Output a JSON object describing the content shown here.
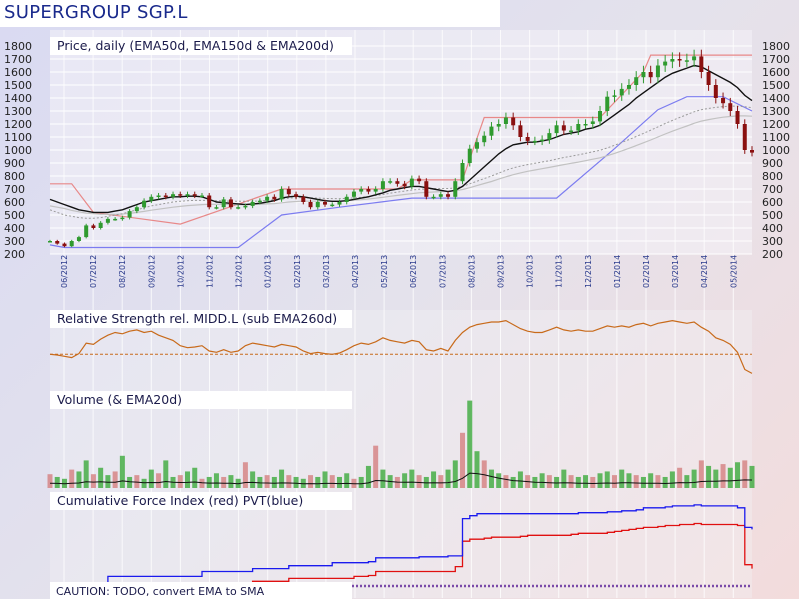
{
  "title": "SUPERGROUP SGP.L",
  "chart_data": {
    "type": "line",
    "panels": [
      {
        "name": "price",
        "title": "Price, daily (EMA50d, EMA150d & EMA200d)",
        "ylim": [
          200,
          1800
        ],
        "yticks": [
          200,
          300,
          400,
          500,
          600,
          700,
          800,
          900,
          1000,
          1100,
          1200,
          1300,
          1400,
          1500,
          1600,
          1700,
          1800
        ]
      },
      {
        "name": "relative-strength",
        "title": "Relative Strength rel. MIDD.L (sub EMA260d)"
      },
      {
        "name": "volume",
        "title": "Volume (& EMA20d)"
      },
      {
        "name": "cumulative-force",
        "title": "Cumulative Force Index (red) PVT(blue)"
      }
    ],
    "x_labels": [
      "06/2012",
      "07/2012",
      "08/2012",
      "09/2012",
      "10/2012",
      "11/2012",
      "12/2012",
      "01/2013",
      "02/2013",
      "03/2013",
      "04/2013",
      "05/2013",
      "06/2013",
      "07/2013",
      "08/2013",
      "09/2013",
      "10/2013",
      "11/2013",
      "12/2013",
      "01/2014",
      "02/2014",
      "03/2014",
      "04/2014",
      "05/2014"
    ],
    "price_close": [
      300,
      280,
      260,
      300,
      330,
      420,
      400,
      440,
      470,
      470,
      480,
      530,
      560,
      610,
      640,
      650,
      640,
      660,
      650,
      660,
      650,
      650,
      560,
      560,
      620,
      560,
      560,
      570,
      600,
      610,
      640,
      620,
      700,
      660,
      640,
      600,
      560,
      600,
      580,
      580,
      600,
      640,
      680,
      700,
      680,
      700,
      760,
      760,
      740,
      720,
      780,
      760,
      640,
      640,
      660,
      640,
      760,
      900,
      1010,
      1060,
      1110,
      1180,
      1200,
      1250,
      1190,
      1100,
      1070,
      1070,
      1080,
      1130,
      1190,
      1150,
      1150,
      1200,
      1200,
      1220,
      1300,
      1410,
      1420,
      1470,
      1500,
      1560,
      1600,
      1560,
      1650,
      1680,
      1700,
      1690,
      1690,
      1720,
      1600,
      1500,
      1400,
      1360,
      1300,
      1200,
      1000,
      980
    ],
    "ema50": [
      620,
      600,
      580,
      560,
      540,
      530,
      520,
      520,
      520,
      530,
      540,
      560,
      580,
      600,
      610,
      620,
      630,
      640,
      640,
      645,
      645,
      640,
      620,
      600,
      595,
      590,
      585,
      580,
      585,
      590,
      600,
      610,
      630,
      640,
      645,
      640,
      630,
      620,
      610,
      605,
      605,
      610,
      620,
      630,
      640,
      655,
      670,
      690,
      700,
      710,
      720,
      720,
      710,
      700,
      690,
      680,
      690,
      720,
      770,
      820,
      870,
      920,
      970,
      1010,
      1040,
      1050,
      1060,
      1060,
      1070,
      1080,
      1100,
      1120,
      1130,
      1140,
      1160,
      1170,
      1190,
      1230,
      1270,
      1310,
      1350,
      1400,
      1440,
      1480,
      1520,
      1560,
      1590,
      1610,
      1630,
      1650,
      1640,
      1610,
      1580,
      1550,
      1520,
      1480,
      1420,
      1380
    ],
    "ema150": [
      540,
      520,
      500,
      490,
      480,
      475,
      475,
      480,
      490,
      500,
      510,
      525,
      540,
      555,
      570,
      580,
      590,
      600,
      605,
      610,
      612,
      612,
      612,
      610,
      608,
      606,
      605,
      605,
      606,
      608,
      612,
      616,
      624,
      630,
      634,
      634,
      632,
      630,
      628,
      626,
      626,
      628,
      632,
      636,
      642,
      650,
      658,
      668,
      676,
      684,
      692,
      698,
      700,
      702,
      704,
      704,
      708,
      720,
      740,
      760,
      780,
      800,
      822,
      844,
      862,
      876,
      888,
      898,
      908,
      918,
      930,
      942,
      952,
      962,
      974,
      986,
      998,
      1016,
      1036,
      1058,
      1080,
      1104,
      1128,
      1152,
      1178,
      1204,
      1228,
      1250,
      1272,
      1294,
      1310,
      1320,
      1328,
      1334,
      1338,
      1338,
      1332,
      1326
    ],
    "ema200": [
      570,
      560,
      550,
      535,
      525,
      515,
      510,
      505,
      505,
      505,
      507,
      512,
      520,
      528,
      537,
      545,
      552,
      560,
      566,
      572,
      576,
      580,
      582,
      582,
      582,
      581,
      580,
      580,
      581,
      582,
      585,
      588,
      594,
      600,
      604,
      606,
      606,
      606,
      606,
      606,
      607,
      610,
      614,
      618,
      623,
      629,
      636,
      644,
      651,
      658,
      665,
      671,
      674,
      677,
      680,
      682,
      686,
      696,
      710,
      726,
      742,
      758,
      776,
      794,
      810,
      824,
      836,
      846,
      856,
      866,
      877,
      888,
      898,
      907,
      918,
      929,
      940,
      956,
      974,
      993,
      1013,
      1034,
      1055,
      1077,
      1100,
      1123,
      1145,
      1165,
      1185,
      1205,
      1222,
      1234,
      1244,
      1252,
      1258,
      1262,
      1262,
      1260
    ],
    "support_resistance": [
      {
        "color": "#e88888",
        "points": [
          [
            0,
            740
          ],
          [
            3,
            740
          ],
          [
            6,
            520
          ],
          [
            18,
            430
          ],
          [
            32,
            700
          ],
          [
            34,
            700
          ],
          [
            48,
            700
          ],
          [
            50,
            770
          ],
          [
            57,
            770
          ],
          [
            60,
            1250
          ],
          [
            76,
            1250
          ],
          [
            82,
            1600
          ],
          [
            83,
            1730
          ],
          [
            97,
            1730
          ]
        ]
      },
      {
        "color": "#7c7cf0",
        "points": [
          [
            0,
            270
          ],
          [
            2,
            250
          ],
          [
            26,
            250
          ],
          [
            32,
            500
          ],
          [
            40,
            560
          ],
          [
            50,
            630
          ],
          [
            52,
            630
          ],
          [
            58,
            630
          ],
          [
            70,
            630
          ],
          [
            78,
            1010
          ],
          [
            84,
            1310
          ],
          [
            88,
            1410
          ],
          [
            93,
            1410
          ],
          [
            97,
            1300
          ]
        ]
      }
    ],
    "relative_strength": [
      0.45,
      0.44,
      0.42,
      0.4,
      0.46,
      0.62,
      0.6,
      0.68,
      0.74,
      0.78,
      0.76,
      0.8,
      0.82,
      0.78,
      0.8,
      0.74,
      0.7,
      0.66,
      0.58,
      0.55,
      0.56,
      0.58,
      0.5,
      0.48,
      0.52,
      0.48,
      0.5,
      0.58,
      0.62,
      0.6,
      0.58,
      0.56,
      0.6,
      0.58,
      0.56,
      0.5,
      0.46,
      0.48,
      0.46,
      0.45,
      0.47,
      0.52,
      0.58,
      0.62,
      0.6,
      0.64,
      0.7,
      0.66,
      0.64,
      0.62,
      0.66,
      0.64,
      0.52,
      0.5,
      0.54,
      0.5,
      0.66,
      0.78,
      0.86,
      0.9,
      0.92,
      0.94,
      0.94,
      0.96,
      0.9,
      0.84,
      0.8,
      0.78,
      0.78,
      0.82,
      0.86,
      0.82,
      0.8,
      0.82,
      0.8,
      0.8,
      0.84,
      0.88,
      0.86,
      0.88,
      0.86,
      0.9,
      0.92,
      0.88,
      0.92,
      0.94,
      0.96,
      0.94,
      0.92,
      0.94,
      0.86,
      0.8,
      0.7,
      0.66,
      0.6,
      0.48,
      0.22,
      0.16
    ],
    "rs_baseline": 0.45,
    "volume": [
      0.15,
      0.12,
      0.1,
      0.2,
      0.18,
      0.3,
      0.15,
      0.22,
      0.14,
      0.18,
      0.35,
      0.12,
      0.14,
      0.1,
      0.2,
      0.16,
      0.3,
      0.12,
      0.14,
      0.18,
      0.22,
      0.1,
      0.12,
      0.16,
      0.12,
      0.14,
      0.1,
      0.28,
      0.18,
      0.12,
      0.14,
      0.12,
      0.2,
      0.14,
      0.12,
      0.1,
      0.14,
      0.12,
      0.18,
      0.14,
      0.12,
      0.16,
      0.1,
      0.12,
      0.24,
      0.46,
      0.2,
      0.14,
      0.12,
      0.16,
      0.2,
      0.14,
      0.12,
      0.18,
      0.14,
      0.2,
      0.3,
      0.6,
      0.95,
      0.4,
      0.3,
      0.2,
      0.16,
      0.14,
      0.12,
      0.18,
      0.14,
      0.12,
      0.16,
      0.14,
      0.12,
      0.2,
      0.14,
      0.12,
      0.14,
      0.12,
      0.16,
      0.18,
      0.14,
      0.2,
      0.16,
      0.14,
      0.12,
      0.16,
      0.14,
      0.12,
      0.18,
      0.22,
      0.14,
      0.2,
      0.3,
      0.24,
      0.2,
      0.26,
      0.22,
      0.28,
      0.3,
      0.24
    ],
    "cfi": [
      null,
      null,
      null,
      null,
      null,
      null,
      0.03,
      0.03,
      0.09,
      0.09,
      0.09,
      0.09,
      0.09,
      0.09,
      0.1,
      0.1,
      0.1,
      0.1,
      0.1,
      0.1,
      0.1,
      0.15,
      0.15,
      0.15,
      0.15,
      0.15,
      0.15,
      0.15,
      0.17,
      0.17,
      0.17,
      0.17,
      0.17,
      0.2,
      0.2,
      0.2,
      0.2,
      0.2,
      0.2,
      0.2,
      0.2,
      0.2,
      0.22,
      0.22,
      0.23,
      0.27,
      0.27,
      0.27,
      0.27,
      0.27,
      0.27,
      0.27,
      0.27,
      0.27,
      0.27,
      0.27,
      0.32,
      0.58,
      0.6,
      0.6,
      0.61,
      0.62,
      0.62,
      0.62,
      0.62,
      0.63,
      0.64,
      0.64,
      0.64,
      0.64,
      0.64,
      0.64,
      0.65,
      0.66,
      0.66,
      0.66,
      0.66,
      0.67,
      0.68,
      0.69,
      0.7,
      0.71,
      0.72,
      0.72,
      0.73,
      0.74,
      0.74,
      0.75,
      0.75,
      0.76,
      0.75,
      0.75,
      0.75,
      0.75,
      0.75,
      0.74,
      0.34,
      0.3
    ],
    "pvt": [
      null,
      null,
      null,
      null,
      null,
      null,
      0.13,
      0.15,
      0.22,
      0.22,
      0.22,
      0.22,
      0.22,
      0.22,
      0.22,
      0.22,
      0.22,
      0.22,
      0.22,
      0.22,
      0.22,
      0.27,
      0.27,
      0.27,
      0.27,
      0.27,
      0.27,
      0.27,
      0.3,
      0.3,
      0.3,
      0.3,
      0.3,
      0.33,
      0.33,
      0.33,
      0.33,
      0.33,
      0.33,
      0.36,
      0.36,
      0.36,
      0.36,
      0.36,
      0.37,
      0.41,
      0.41,
      0.41,
      0.41,
      0.41,
      0.41,
      0.42,
      0.42,
      0.42,
      0.42,
      0.43,
      0.43,
      0.81,
      0.84,
      0.86,
      0.86,
      0.86,
      0.86,
      0.86,
      0.86,
      0.86,
      0.86,
      0.86,
      0.86,
      0.86,
      0.86,
      0.86,
      0.86,
      0.87,
      0.87,
      0.87,
      0.87,
      0.88,
      0.88,
      0.89,
      0.89,
      0.9,
      0.92,
      0.92,
      0.92,
      0.93,
      0.94,
      0.94,
      0.94,
      0.95,
      0.94,
      0.94,
      0.94,
      0.94,
      0.94,
      0.92,
      0.72,
      0.7
    ],
    "caution_note": "CAUTION: TODO, convert EMA to SMA"
  },
  "colors": {
    "price_up": "#2f9a2f",
    "price_down": "#8a1010",
    "ema50": "#111111",
    "ema150": "#9a9a9a",
    "ema200": "#c2c2c2",
    "rs": "#c86a1a",
    "volume_bar": "#3caa3c",
    "volume_down": "#d48080",
    "cfi": "#e01010",
    "pvt": "#1a1aee",
    "title": "#1a2a8c"
  }
}
